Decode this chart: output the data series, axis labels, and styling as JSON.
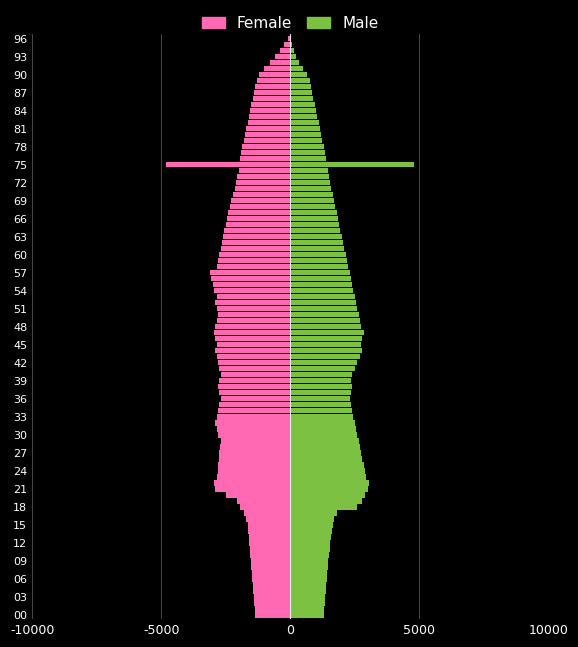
{
  "background_color": "#000000",
  "female_color": "#ff69b4",
  "male_color": "#7dc142",
  "female_label": "Female",
  "male_label": "Male",
  "xlim": [
    -10000,
    10000
  ],
  "xticks": [
    -10000,
    -5000,
    0,
    5000,
    10000
  ],
  "xtick_labels": [
    "-10000",
    "-5000",
    "0",
    "5000",
    "10000"
  ],
  "ytick_labels": [
    "00",
    "03",
    "06",
    "09",
    "12",
    "15",
    "18",
    "21",
    "24",
    "27",
    "30",
    "33",
    "36",
    "39",
    "42",
    "45",
    "48",
    "51",
    "54",
    "57",
    "60",
    "63",
    "66",
    "69",
    "72",
    "75",
    "78",
    "81",
    "84",
    "87",
    "90",
    "93",
    "96"
  ],
  "legend_fontsize": 11,
  "tick_color": "#ffffff",
  "grid_color": "#ffffff",
  "female_pop": [
    1350,
    1370,
    1390,
    1410,
    1430,
    1450,
    1470,
    1490,
    1510,
    1530,
    1550,
    1570,
    1590,
    1610,
    1630,
    1650,
    1700,
    1800,
    1950,
    2050,
    2500,
    2900,
    2950,
    2850,
    2800,
    2780,
    2760,
    2740,
    2720,
    2700,
    2800,
    2850,
    2900,
    2850,
    2800,
    2750,
    2700,
    2750,
    2800,
    2750,
    2700,
    2750,
    2800,
    2850,
    2900,
    2850,
    2900,
    2950,
    2900,
    2850,
    2800,
    2850,
    2900,
    2850,
    2950,
    3000,
    3050,
    3100,
    2850,
    2800,
    2750,
    2700,
    2650,
    2600,
    2550,
    2500,
    2450,
    2400,
    2350,
    2300,
    2200,
    2150,
    2100,
    2050,
    2000,
    4800,
    1950,
    1900,
    1850,
    1800,
    1750,
    1700,
    1650,
    1600,
    1550,
    1500,
    1450,
    1400,
    1350,
    1300,
    1200,
    1000,
    800,
    600,
    400,
    250,
    80
  ],
  "male_pop": [
    1300,
    1320,
    1340,
    1360,
    1380,
    1400,
    1420,
    1440,
    1460,
    1480,
    1500,
    1530,
    1560,
    1590,
    1620,
    1650,
    1700,
    1800,
    2600,
    2800,
    2900,
    3000,
    3050,
    2950,
    2900,
    2850,
    2800,
    2750,
    2700,
    2650,
    2600,
    2550,
    2500,
    2450,
    2400,
    2350,
    2300,
    2350,
    2400,
    2350,
    2400,
    2500,
    2600,
    2700,
    2800,
    2750,
    2800,
    2850,
    2750,
    2700,
    2650,
    2600,
    2550,
    2500,
    2450,
    2400,
    2350,
    2300,
    2250,
    2200,
    2150,
    2100,
    2050,
    2000,
    1950,
    1900,
    1850,
    1800,
    1750,
    1700,
    1650,
    1600,
    1550,
    1500,
    1450,
    4800,
    1400,
    1350,
    1300,
    1250,
    1200,
    1150,
    1100,
    1050,
    1000,
    950,
    900,
    850,
    800,
    750,
    650,
    500,
    360,
    240,
    150,
    80,
    30
  ]
}
